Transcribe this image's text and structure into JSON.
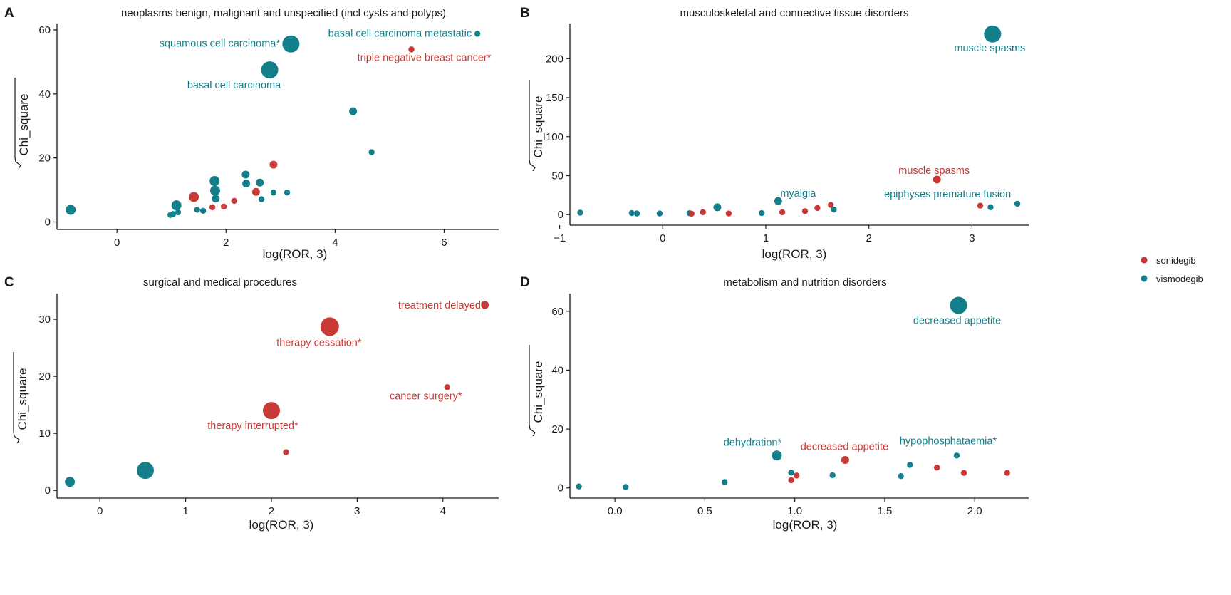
{
  "colors": {
    "sonidegib": "#c73a36",
    "vismodegib": "#127f8a",
    "axis": "#1a1a1a"
  },
  "legend": [
    {
      "key": "sonidegib",
      "label": "sonidegib"
    },
    {
      "key": "vismodegib",
      "label": "vismodegib"
    }
  ],
  "chart_data": [
    {
      "type": "scatter",
      "panel": "A",
      "title": "neoplasms benign, malignant and unspecified (incl cysts and polyps)",
      "xlabel": "log(ROR, 3)",
      "ylabel": "Chi_square",
      "xlim": [
        -1.1,
        7.0
      ],
      "ylim": [
        -1.0,
        62.0
      ],
      "xticks": [
        0,
        2,
        4,
        6
      ],
      "yticks": [
        0,
        20,
        40,
        60
      ],
      "points": [
        {
          "x": -0.85,
          "y": 3.8,
          "s": 3,
          "drug": "vismodegib"
        },
        {
          "x": 0.98,
          "y": 2.2,
          "s": 1,
          "drug": "vismodegib"
        },
        {
          "x": 1.03,
          "y": 2.5,
          "s": 1,
          "drug": "vismodegib"
        },
        {
          "x": 1.09,
          "y": 5.2,
          "s": 3,
          "drug": "vismodegib"
        },
        {
          "x": 1.12,
          "y": 3.0,
          "s": 1,
          "drug": "vismodegib"
        },
        {
          "x": 1.41,
          "y": 7.8,
          "s": 3,
          "drug": "sonidegib"
        },
        {
          "x": 1.47,
          "y": 3.8,
          "s": 1,
          "drug": "vismodegib"
        },
        {
          "x": 1.58,
          "y": 3.5,
          "s": 1,
          "drug": "vismodegib"
        },
        {
          "x": 1.75,
          "y": 4.6,
          "s": 1,
          "drug": "sonidegib"
        },
        {
          "x": 1.79,
          "y": 12.8,
          "s": 3,
          "drug": "vismodegib"
        },
        {
          "x": 1.8,
          "y": 9.8,
          "s": 3,
          "drug": "vismodegib"
        },
        {
          "x": 1.81,
          "y": 7.3,
          "s": 2,
          "drug": "vismodegib"
        },
        {
          "x": 1.96,
          "y": 4.8,
          "s": 1,
          "drug": "sonidegib"
        },
        {
          "x": 2.15,
          "y": 6.6,
          "s": 1,
          "drug": "sonidegib"
        },
        {
          "x": 2.36,
          "y": 14.8,
          "s": 2,
          "drug": "vismodegib"
        },
        {
          "x": 2.37,
          "y": 12.0,
          "s": 2,
          "drug": "vismodegib"
        },
        {
          "x": 2.55,
          "y": 9.4,
          "s": 2,
          "drug": "sonidegib"
        },
        {
          "x": 2.62,
          "y": 12.3,
          "s": 2,
          "drug": "vismodegib"
        },
        {
          "x": 2.65,
          "y": 7.1,
          "s": 1,
          "drug": "vismodegib"
        },
        {
          "x": 2.8,
          "y": 47.5,
          "s": 5,
          "drug": "vismodegib",
          "label": "basal cell carcinoma"
        },
        {
          "x": 2.87,
          "y": 17.9,
          "s": 2,
          "drug": "sonidegib"
        },
        {
          "x": 2.87,
          "y": 9.2,
          "s": 1,
          "drug": "vismodegib"
        },
        {
          "x": 3.12,
          "y": 9.2,
          "s": 1,
          "drug": "vismodegib"
        },
        {
          "x": 3.19,
          "y": 55.6,
          "s": 5,
          "drug": "vismodegib",
          "label": "squamous cell carcinoma*"
        },
        {
          "x": 4.33,
          "y": 34.6,
          "s": 2,
          "drug": "vismodegib"
        },
        {
          "x": 4.67,
          "y": 21.8,
          "s": 1,
          "drug": "vismodegib"
        },
        {
          "x": 5.4,
          "y": 53.9,
          "s": 1,
          "drug": "sonidegib",
          "label": "triple negative breast cancer*"
        },
        {
          "x": 6.61,
          "y": 58.8,
          "s": 1,
          "drug": "vismodegib",
          "label": "basal cell carcinoma metastatic"
        }
      ]
    },
    {
      "type": "scatter",
      "panel": "B",
      "title": "musculoskeletal and connective tissue disorders",
      "xlabel": "log(ROR, 3)",
      "ylabel": "Chi_square",
      "xlim": [
        -0.9,
        3.55
      ],
      "ylim": [
        -8,
        245
      ],
      "xticks": [
        -1,
        0,
        1,
        2,
        3
      ],
      "yticks": [
        0,
        50,
        100,
        150,
        200
      ],
      "points": [
        {
          "x": -0.8,
          "y": 2.5,
          "s": 1,
          "drug": "vismodegib"
        },
        {
          "x": -0.3,
          "y": 2.0,
          "s": 1,
          "drug": "vismodegib"
        },
        {
          "x": -0.25,
          "y": 1.5,
          "s": 1,
          "drug": "vismodegib"
        },
        {
          "x": -0.03,
          "y": 1.5,
          "s": 1,
          "drug": "vismodegib"
        },
        {
          "x": 0.26,
          "y": 1.8,
          "s": 1,
          "drug": "vismodegib"
        },
        {
          "x": 0.28,
          "y": 1.2,
          "s": 1,
          "drug": "sonidegib"
        },
        {
          "x": 0.39,
          "y": 3.0,
          "s": 1,
          "drug": "sonidegib"
        },
        {
          "x": 0.53,
          "y": 9.5,
          "s": 2,
          "drug": "vismodegib"
        },
        {
          "x": 0.64,
          "y": 1.5,
          "s": 1,
          "drug": "sonidegib"
        },
        {
          "x": 0.96,
          "y": 2.0,
          "s": 1,
          "drug": "vismodegib"
        },
        {
          "x": 1.12,
          "y": 17.5,
          "s": 2,
          "drug": "vismodegib",
          "label": "myalgia"
        },
        {
          "x": 1.16,
          "y": 3.0,
          "s": 1,
          "drug": "sonidegib"
        },
        {
          "x": 1.38,
          "y": 4.5,
          "s": 1,
          "drug": "sonidegib"
        },
        {
          "x": 1.5,
          "y": 8.5,
          "s": 1,
          "drug": "sonidegib"
        },
        {
          "x": 1.63,
          "y": 12.5,
          "s": 1,
          "drug": "sonidegib"
        },
        {
          "x": 1.66,
          "y": 6.5,
          "s": 1,
          "drug": "vismodegib"
        },
        {
          "x": 2.66,
          "y": 45.0,
          "s": 2,
          "drug": "sonidegib",
          "label": "muscle spasms"
        },
        {
          "x": 3.08,
          "y": 11.5,
          "s": 1,
          "drug": "sonidegib"
        },
        {
          "x": 3.18,
          "y": 9.5,
          "s": 1,
          "drug": "vismodegib"
        },
        {
          "x": 3.2,
          "y": 231.5,
          "s": 5,
          "drug": "vismodegib",
          "label": "muscle spasms"
        },
        {
          "x": 3.44,
          "y": 14.0,
          "s": 1,
          "drug": "vismodegib",
          "label": "epiphyses premature fusion"
        }
      ]
    },
    {
      "type": "scatter",
      "panel": "C",
      "title": "surgical and medical procedures",
      "xlabel": "log(ROR, 3)",
      "ylabel": "Chi_square",
      "xlim": [
        -0.5,
        4.65
      ],
      "ylim": [
        -0.6,
        34.5
      ],
      "xticks": [
        0,
        1,
        2,
        3,
        4
      ],
      "yticks": [
        0,
        10,
        20,
        30
      ],
      "points": [
        {
          "x": -0.35,
          "y": 1.5,
          "s": 3,
          "drug": "vismodegib"
        },
        {
          "x": 0.53,
          "y": 3.5,
          "s": 5,
          "drug": "vismodegib"
        },
        {
          "x": 2.0,
          "y": 14.0,
          "s": 5,
          "drug": "sonidegib",
          "label": "therapy interrupted*"
        },
        {
          "x": 2.17,
          "y": 6.7,
          "s": 1,
          "drug": "sonidegib"
        },
        {
          "x": 2.68,
          "y": 28.7,
          "s": 6,
          "drug": "sonidegib",
          "label": "therapy cessation*"
        },
        {
          "x": 4.05,
          "y": 18.1,
          "s": 1,
          "drug": "sonidegib",
          "label": "cancer surgery*"
        },
        {
          "x": 4.49,
          "y": 32.5,
          "s": 2,
          "drug": "sonidegib",
          "label": "treatment delayed*"
        }
      ]
    },
    {
      "type": "scatter",
      "panel": "D",
      "title": "metabolism and nutrition disorders",
      "xlabel": "log(ROR, 3)",
      "ylabel": "Chi_square",
      "xlim": [
        -0.25,
        2.3
      ],
      "ylim": [
        -2,
        66
      ],
      "xticks": [
        0.0,
        0.5,
        1.0,
        1.5,
        2.0
      ],
      "yticks": [
        0,
        20,
        40,
        60
      ],
      "points": [
        {
          "x": -0.2,
          "y": 0.5,
          "s": 1,
          "drug": "vismodegib"
        },
        {
          "x": 0.06,
          "y": 0.3,
          "s": 1,
          "drug": "vismodegib"
        },
        {
          "x": 0.61,
          "y": 2.0,
          "s": 1,
          "drug": "vismodegib"
        },
        {
          "x": 0.9,
          "y": 11.0,
          "s": 3,
          "drug": "vismodegib",
          "label": "dehydration*"
        },
        {
          "x": 0.98,
          "y": 5.2,
          "s": 1,
          "drug": "vismodegib"
        },
        {
          "x": 0.98,
          "y": 2.6,
          "s": 1,
          "drug": "sonidegib"
        },
        {
          "x": 1.01,
          "y": 4.2,
          "s": 1,
          "drug": "sonidegib"
        },
        {
          "x": 1.21,
          "y": 4.3,
          "s": 1,
          "drug": "vismodegib"
        },
        {
          "x": 1.28,
          "y": 9.5,
          "s": 2,
          "drug": "sonidegib",
          "label": "decreased appetite"
        },
        {
          "x": 1.59,
          "y": 4.0,
          "s": 1,
          "drug": "vismodegib"
        },
        {
          "x": 1.64,
          "y": 7.8,
          "s": 1,
          "drug": "vismodegib"
        },
        {
          "x": 1.79,
          "y": 6.9,
          "s": 1,
          "drug": "sonidegib"
        },
        {
          "x": 1.9,
          "y": 11.0,
          "s": 1,
          "drug": "vismodegib",
          "label": "hypophosphataemia*"
        },
        {
          "x": 1.91,
          "y": 62.0,
          "s": 5,
          "drug": "vismodegib",
          "label": "decreased appetite"
        },
        {
          "x": 1.94,
          "y": 5.1,
          "s": 1,
          "drug": "sonidegib"
        },
        {
          "x": 2.18,
          "y": 5.1,
          "s": 1,
          "drug": "sonidegib"
        }
      ]
    }
  ]
}
